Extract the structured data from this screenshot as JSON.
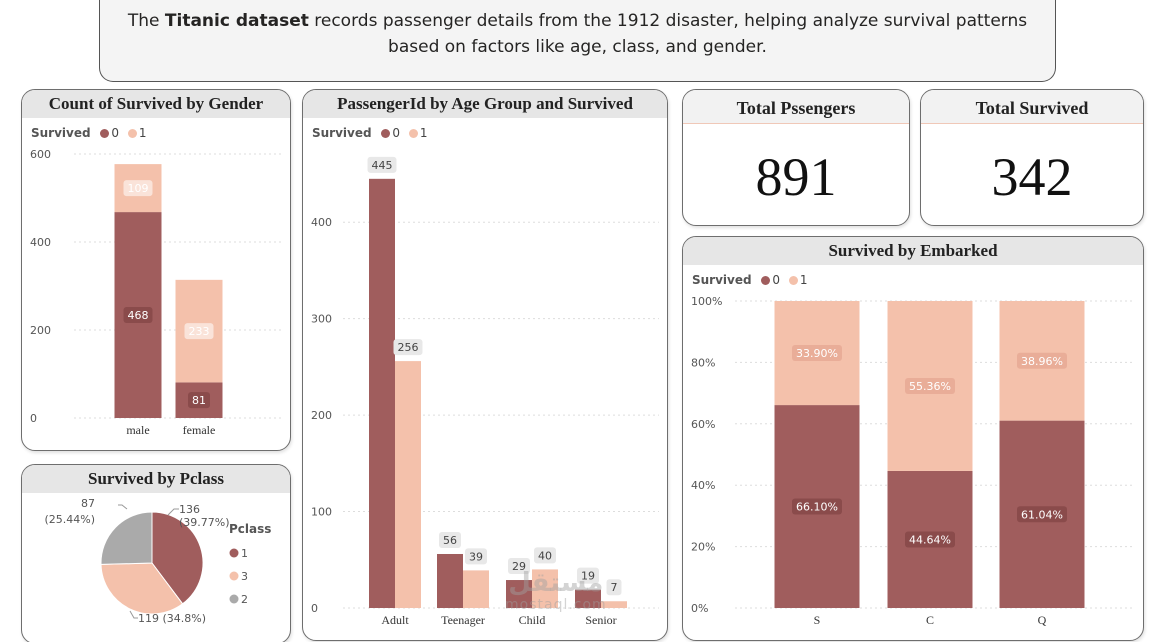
{
  "intro": {
    "pre": "The ",
    "bold": "Titanic dataset",
    "post": " records passenger details from the 1912 disaster, helping analyze survival patterns based on factors like age, class, and gender."
  },
  "legend_title": "Survived",
  "legend_items": [
    "0",
    "1"
  ],
  "colors": {
    "survived_0": "#a05d5d",
    "survived_1": "#f4c1ab",
    "pclass_2": "#aaaaaa",
    "grid": "#dddddd"
  },
  "cards": {
    "total_passengers": {
      "title": "Total Pssengers",
      "value": "891"
    },
    "total_survived": {
      "title": "Total Survived",
      "value": "342"
    }
  },
  "pclass_legend_title": "Pclass",
  "watermark": {
    "top": "مستقل",
    "bottom": "mostaql.com"
  },
  "chart_data": [
    {
      "id": "gender",
      "type": "bar",
      "stacked": true,
      "title": "Count of Survived by Gender",
      "categories": [
        "male",
        "female"
      ],
      "series": [
        {
          "name": "0",
          "values": [
            468,
            81
          ]
        },
        {
          "name": "1",
          "values": [
            109,
            233
          ]
        }
      ],
      "ylim": [
        0,
        600
      ],
      "yticks": [
        0,
        200,
        400,
        600
      ],
      "legend_title": "Survived"
    },
    {
      "id": "age",
      "type": "bar",
      "stacked": false,
      "title": "PassengerId by Age Group and Survived",
      "categories": [
        "Adult",
        "Teenager",
        "Child",
        "Senior"
      ],
      "series": [
        {
          "name": "0",
          "values": [
            445,
            56,
            29,
            19
          ]
        },
        {
          "name": "1",
          "values": [
            256,
            39,
            40,
            7
          ]
        }
      ],
      "ylim": [
        0,
        450
      ],
      "yticks": [
        0,
        100,
        200,
        300,
        400
      ],
      "legend_title": "Survived"
    },
    {
      "id": "pclass",
      "type": "pie",
      "title": "Survived by Pclass",
      "legend_title": "Pclass",
      "slices": [
        {
          "label": "1",
          "value": 136,
          "display": "136",
          "pct_display": "(39.77%)"
        },
        {
          "label": "3",
          "value": 119,
          "display": "119 (34.8%)",
          "pct_display": ""
        },
        {
          "label": "2",
          "value": 87,
          "display": "87",
          "pct_display": "(25.44%)"
        }
      ]
    },
    {
      "id": "embarked",
      "type": "bar",
      "stacked": true,
      "percent": true,
      "title": "Survived by Embarked",
      "categories": [
        "S",
        "C",
        "Q"
      ],
      "series": [
        {
          "name": "0",
          "values": [
            66.1,
            44.64,
            61.04
          ],
          "labels": [
            "66.10%",
            "44.64%",
            "61.04%"
          ]
        },
        {
          "name": "1",
          "values": [
            33.9,
            55.36,
            38.96
          ],
          "labels": [
            "33.90%",
            "55.36%",
            "38.96%"
          ]
        }
      ],
      "ylim": [
        0,
        100
      ],
      "yticks": [
        0,
        20,
        40,
        60,
        80,
        100
      ],
      "ytick_labels": [
        "0%",
        "20%",
        "40%",
        "60%",
        "80%",
        "100%"
      ],
      "legend_title": "Survived"
    }
  ]
}
